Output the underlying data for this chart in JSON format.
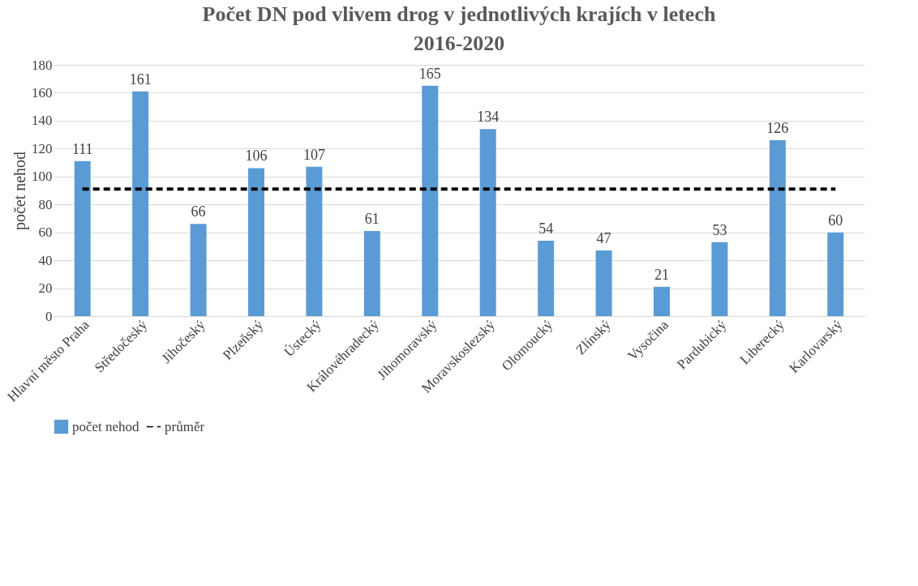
{
  "chart_data": {
    "type": "bar",
    "title": "Počet DN pod vlivem drog v jednotlivých krajích v letech 2016-2020",
    "ylabel": "počet nehod",
    "categories": [
      "Hlavní město Praha",
      "Středočeský",
      "Jihočeský",
      "Plzeňský",
      "Ústecký",
      "Královéhradecký",
      "Jihomoravský",
      "Moravskoslezský",
      "Olomoucký",
      "Zlínský",
      "Vysočina",
      "Pardubický",
      "Liberecký",
      "Karlovarský"
    ],
    "series": [
      {
        "name": "počet nehod",
        "color": "#5b9bd5",
        "values": [
          111,
          161,
          66,
          106,
          107,
          61,
          165,
          134,
          54,
          47,
          21,
          53,
          126,
          60
        ],
        "value_labels": [
          "111",
          "161",
          "66",
          "106",
          "107",
          "61",
          "165",
          "134",
          "54",
          "47",
          "21",
          "53",
          "126",
          "60"
        ]
      },
      {
        "name": "průměr",
        "type": "line",
        "color": "#000000",
        "line_style": "dashed",
        "values": [
          91,
          91,
          91,
          91,
          91,
          91,
          91,
          91,
          91,
          91,
          91,
          91,
          91,
          91
        ]
      }
    ],
    "ylim": [
      0,
      180
    ],
    "yticks": [
      0,
      20,
      40,
      60,
      80,
      100,
      120,
      140,
      160,
      180
    ],
    "grid": "y",
    "legend": "bottom",
    "marker": "none"
  }
}
